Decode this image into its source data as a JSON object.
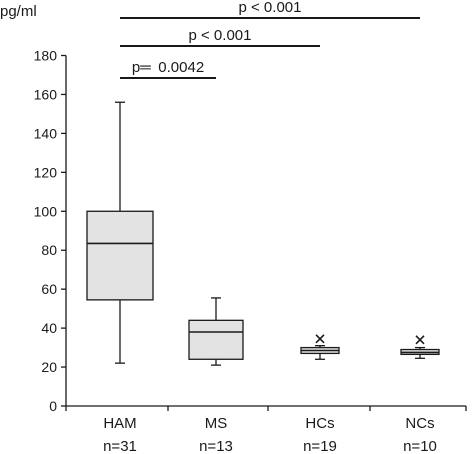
{
  "chart_data": {
    "type": "box",
    "ylabel": "pg/ml",
    "ylim": [
      0,
      180
    ],
    "yticks": [
      "0",
      "20",
      "40",
      "60",
      "80",
      "100",
      "120",
      "140",
      "160",
      "180"
    ],
    "grid": false,
    "categories": [
      "HAM",
      "MS",
      "HCs",
      "NCs"
    ],
    "n_labels": [
      "n=31",
      "n=13",
      "n=19",
      "n=10"
    ],
    "boxes": [
      {
        "category": "HAM",
        "min": 22,
        "q1": 54.5,
        "median": 83.5,
        "q3": 100,
        "max": 156,
        "outliers": []
      },
      {
        "category": "MS",
        "min": 21,
        "q1": 24,
        "median": 38,
        "q3": 44,
        "max": 55.5,
        "outliers": []
      },
      {
        "category": "HCs",
        "min": 24,
        "q1": 27,
        "median": 28.5,
        "q3": 30,
        "max": 31,
        "outliers": [
          34.5
        ]
      },
      {
        "category": "NCs",
        "min": 24.5,
        "q1": 26.5,
        "median": 27.5,
        "q3": 29,
        "max": 30,
        "outliers": [
          34
        ]
      }
    ],
    "comparisons": [
      {
        "from": "HAM",
        "to": "MS",
        "label": "p═ 0.0042"
      },
      {
        "from": "HAM",
        "to": "HCs",
        "label": "p < 0.001"
      },
      {
        "from": "HAM",
        "to": "NCs",
        "label": "p < 0.001"
      }
    ],
    "colors": {
      "box_fill": "#e3e3e3",
      "stroke": "#1a1a1a"
    }
  }
}
